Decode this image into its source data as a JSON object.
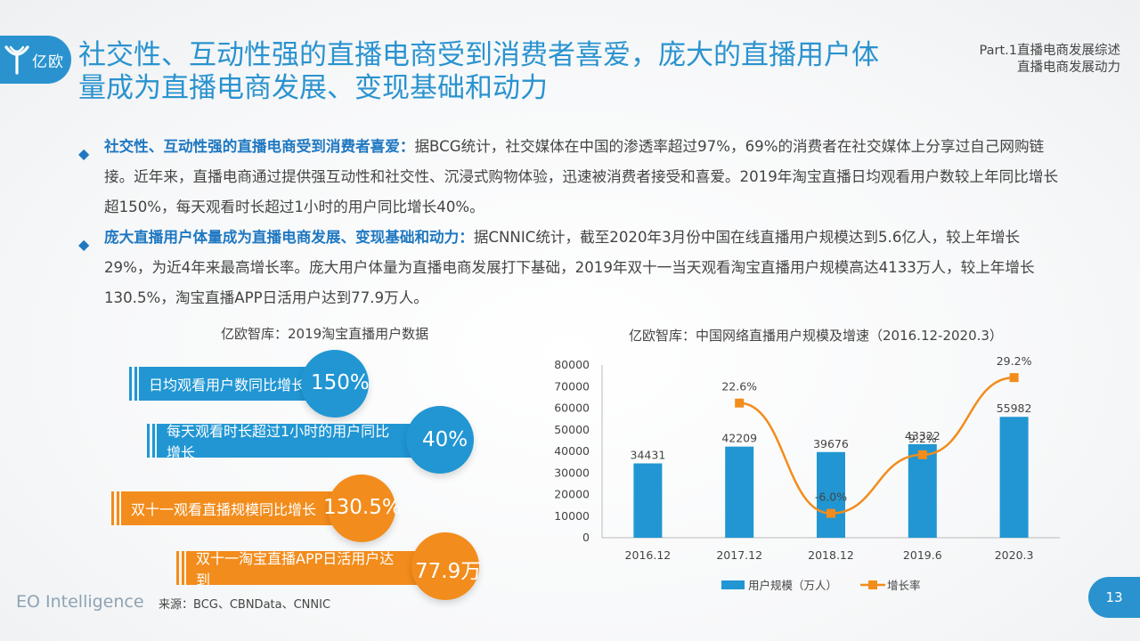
{
  "logo": {
    "text": "亿欧"
  },
  "title": "社交性、互动性强的直播电商受到消费者喜爱，庞大的直播用户体量成为直播电商发展、变现基础和动力",
  "part": {
    "line1": "Part.1直播电商发展综述",
    "line2": "直播电商发展动力"
  },
  "bullets": [
    {
      "lead": "社交性、互动性强的直播电商受到消费者喜爱：",
      "text": "据BCG统计，社交媒体在中国的渗透率超过97%，69%的消费者在社交媒体上分享过自己网购链接。近年来，直播电商通过提供强互动性和社交性、沉浸式购物体验，迅速被消费者接受和喜爱。2019年淘宝直播日均观看用户数较上年同比增长超150%，每天观看时长超过1小时的用户同比增长40%。"
    },
    {
      "lead": "庞大直播用户体量成为直播电商发展、变现基础和动力：",
      "text": "据CNNIC统计，截至2020年3月份中国在线直播用户规模达到5.6亿人，较上年增长29%，为近4年来最高增长率。庞大用户体量为直播电商发展打下基础，2019年双十一当天观看淘宝直播用户规模高达4133万人，较上年增长130.5%，淘宝直播APP日活用户达到77.9万人。"
    }
  ],
  "left_title": "亿欧智库：2019淘宝直播用户数据",
  "stats": [
    {
      "label": "日均观看用户数同比增长",
      "value": "150%",
      "color": "#2196d3"
    },
    {
      "label": "每天观看时长超过1小时的用户同比增长",
      "value": "40%",
      "color": "#2196d3"
    },
    {
      "label": "双十一观看直播规模同比增长",
      "value": "130.5%",
      "color": "#f28c1c"
    },
    {
      "label": "双十一淘宝直播APP日活用户达到",
      "value": "77.9万",
      "color": "#f28c1c"
    }
  ],
  "chart_data": {
    "type": "bar",
    "title": "亿欧智库：中国网络直播用户规模及增速（2016.12-2020.3）",
    "categories": [
      "2016.12",
      "2017.12",
      "2018.12",
      "2019.6",
      "2020.3"
    ],
    "series": [
      {
        "name": "用户规模（万人）",
        "type": "bar",
        "values": [
          34431,
          42209,
          39676,
          43322,
          55982
        ],
        "labels": [
          "34431",
          "42209",
          "39676",
          "43322",
          "55982"
        ],
        "color": "#2196d3"
      },
      {
        "name": "增长率",
        "type": "line",
        "values": [
          null,
          22.6,
          -6.0,
          9.2,
          29.2
        ],
        "labels": [
          "",
          "22.6%",
          "-6.0%",
          "9.2%",
          "29.2%"
        ],
        "color": "#f28c1c"
      }
    ],
    "ylim": [
      0,
      80000
    ],
    "yticks": [
      "0",
      "10000",
      "20000",
      "30000",
      "40000",
      "50000",
      "60000",
      "70000",
      "80000"
    ],
    "legend": "bottom",
    "grid": false
  },
  "footer": {
    "brand": "EO Intelligence",
    "source": "来源：BCG、CBNData、CNNIC"
  },
  "page_number": "13"
}
